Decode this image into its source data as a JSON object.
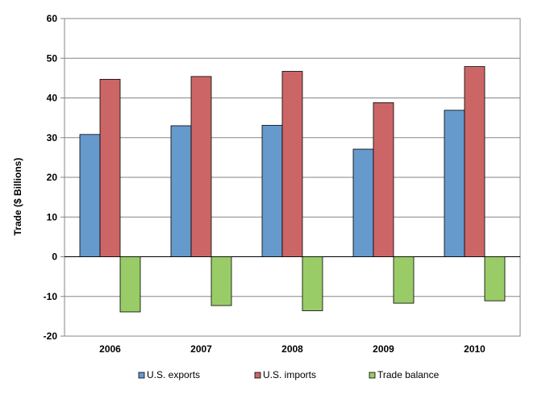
{
  "chart_data": {
    "type": "bar",
    "title": "",
    "xlabel": "",
    "ylabel": "Trade ($ Billions)",
    "categories": [
      "2006",
      "2007",
      "2008",
      "2009",
      "2010"
    ],
    "series": [
      {
        "name": "U.S. exports",
        "values": [
          30.8,
          33.0,
          33.1,
          27.1,
          36.9
        ],
        "color": "#6699CC"
      },
      {
        "name": "U.S. imports",
        "values": [
          44.7,
          45.4,
          46.7,
          38.8,
          47.9
        ],
        "color": "#CC6666"
      },
      {
        "name": "Trade balance",
        "values": [
          -13.9,
          -12.3,
          -13.6,
          -11.7,
          -11.1
        ],
        "color": "#99CC66"
      }
    ],
    "ylim": [
      -20,
      60
    ],
    "yticks": [
      "-20",
      "-10",
      "0",
      "10",
      "20",
      "30",
      "40",
      "50",
      "60"
    ],
    "grid": true,
    "legend_position": "bottom"
  }
}
